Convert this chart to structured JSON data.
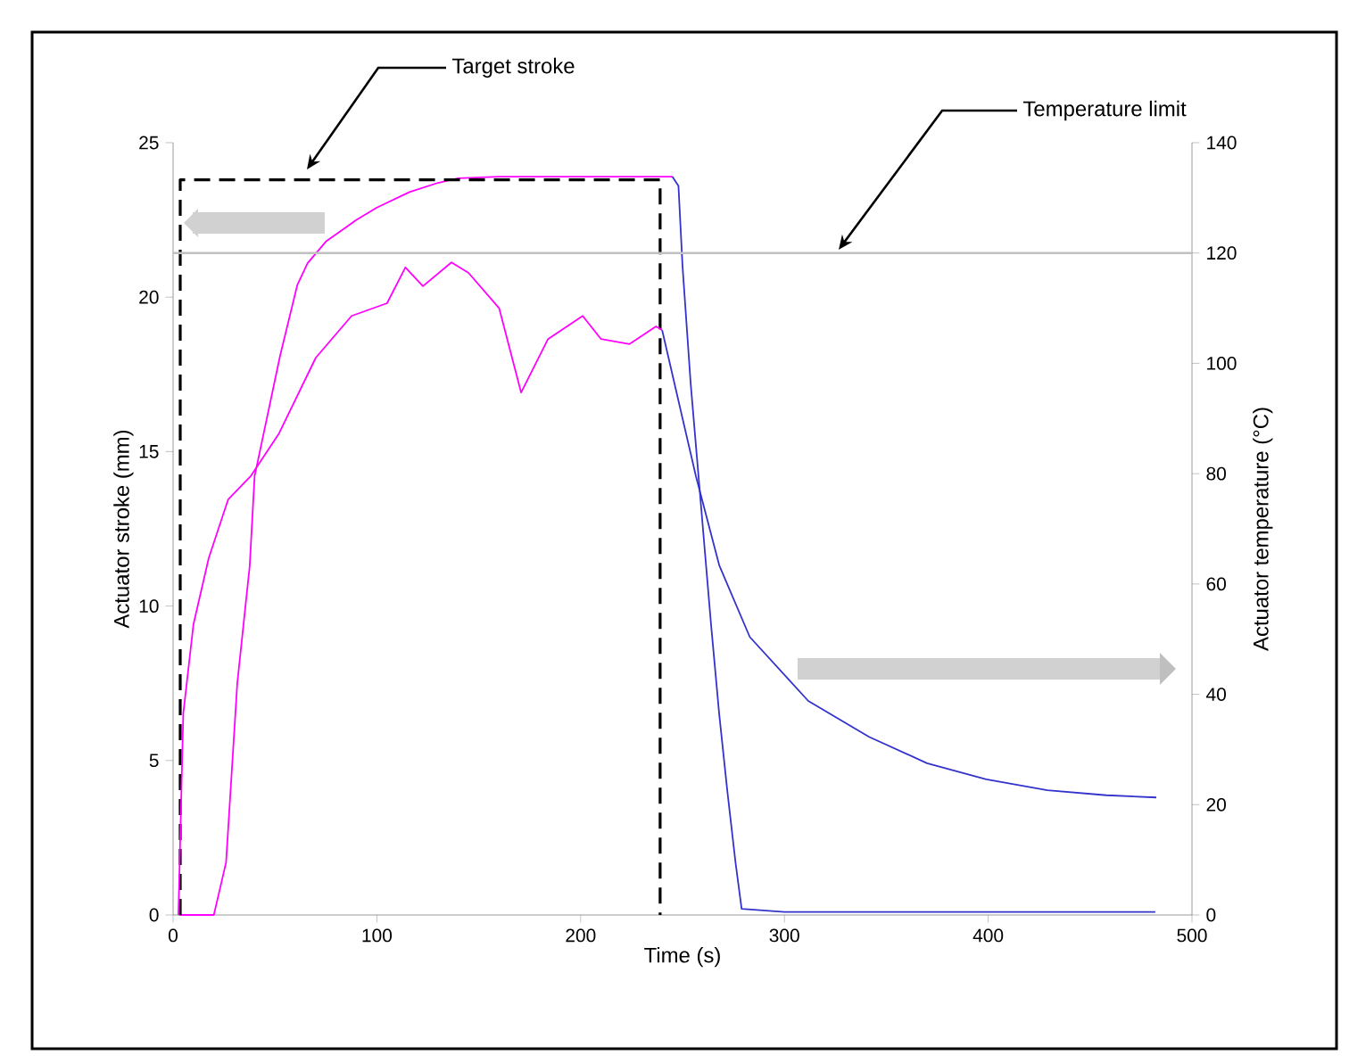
{
  "chart_data": {
    "type": "line",
    "xlabel": "Time (s)",
    "ylabel": "Actuator stroke (mm)",
    "y2label": "Actuator temperature (°C)",
    "xlim": [
      0,
      500
    ],
    "xticks": [
      0,
      100,
      200,
      300,
      400,
      500
    ],
    "ylim": [
      0,
      25
    ],
    "yticks": [
      0,
      5,
      10,
      15,
      20,
      25
    ],
    "y2lim": [
      0,
      140
    ],
    "y2ticks": [
      0,
      20,
      40,
      60,
      80,
      100,
      120,
      140
    ],
    "series": [
      {
        "color": "#ff00ff",
        "axis": "y",
        "x": [
          3,
          20,
          26,
          31.5,
          37.6,
          40,
          52.5,
          61,
          66,
          75,
          90,
          100,
          116,
          130,
          140,
          160,
          180,
          200,
          220,
          245
        ],
        "values": [
          0,
          0,
          1.7,
          7.5,
          11.3,
          14.2,
          18.1,
          20.4,
          21.1,
          21.8,
          22.5,
          22.9,
          23.4,
          23.7,
          23.85,
          23.9,
          23.9,
          23.9,
          23.9,
          23.9
        ]
      },
      {
        "color": "#3333cc",
        "axis": "y",
        "x": [
          245,
          248,
          250,
          254,
          259,
          264,
          268,
          272,
          276,
          279,
          300,
          350,
          400,
          450,
          482
        ],
        "values": [
          23.9,
          23.6,
          21,
          17.2,
          13.3,
          9.4,
          6.5,
          4,
          1.7,
          0.2,
          0.1,
          0.1,
          0.1,
          0.1,
          0.1
        ]
      },
      {
        "color": "#ff00ff",
        "axis": "y2",
        "x": [
          2.6,
          5,
          10,
          17.5,
          27,
          38,
          52,
          70,
          87.6,
          105,
          114,
          122.6,
          136.6,
          145,
          160,
          170.8,
          184,
          201,
          210,
          224,
          237,
          240
        ],
        "values": [
          0,
          36.5,
          52.7,
          64.7,
          75.3,
          79.5,
          87.3,
          101,
          108.6,
          110.9,
          117.4,
          114,
          118.3,
          116.4,
          110,
          94.7,
          104.4,
          108.6,
          104.4,
          103.5,
          106.7,
          106
        ]
      },
      {
        "color": "#3333cc",
        "axis": "y2",
        "x": [
          240,
          245,
          256.6,
          268,
          283,
          311.7,
          341.5,
          370,
          399,
          429,
          458,
          482.5
        ],
        "values": [
          106,
          98,
          79.5,
          63.4,
          50.4,
          38.8,
          32.3,
          27.5,
          24.6,
          22.6,
          21.7,
          21.3
        ]
      },
      {
        "color": "#000000",
        "axis": "y",
        "line_style": "dashed",
        "x": [
          3.5,
          3.5,
          239,
          239
        ],
        "values": [
          0,
          23.8,
          23.8,
          0
        ]
      }
    ],
    "ref_lines": [
      {
        "axis": "y2",
        "value": 120,
        "color": "#c0c0c0"
      }
    ],
    "annotations": [
      "Target stroke",
      "Temperature limit"
    ],
    "grid": false,
    "marker": "none"
  }
}
